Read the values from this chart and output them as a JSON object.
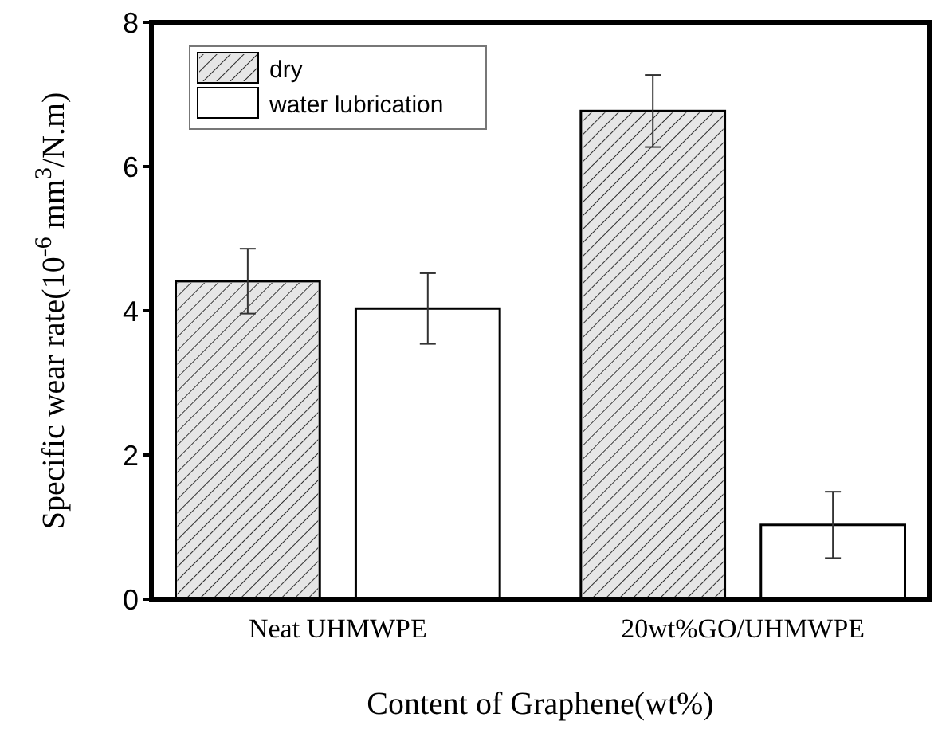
{
  "chart_data": {
    "type": "bar",
    "xlabel": "Content of Graphene(wt%)",
    "ylabel": "Specific wear rate(10$^{-6}$ mm$^{3}$/N.m)",
    "categories": [
      "Neat UHMWPE",
      "20wt%GO/UHMWPE"
    ],
    "series": [
      {
        "name": "dry",
        "color": "#e6e6e6",
        "values": [
          4.41,
          6.77
        ],
        "errors": [
          0.45,
          0.5
        ]
      },
      {
        "name": "water lubrication",
        "color": "#ffffff",
        "values": [
          4.03,
          1.03
        ],
        "errors": [
          0.49,
          0.46
        ]
      }
    ],
    "ylim": [
      0,
      8
    ],
    "yticks": [
      0,
      2,
      4,
      6,
      8
    ],
    "grid": false,
    "legend": "top left"
  }
}
